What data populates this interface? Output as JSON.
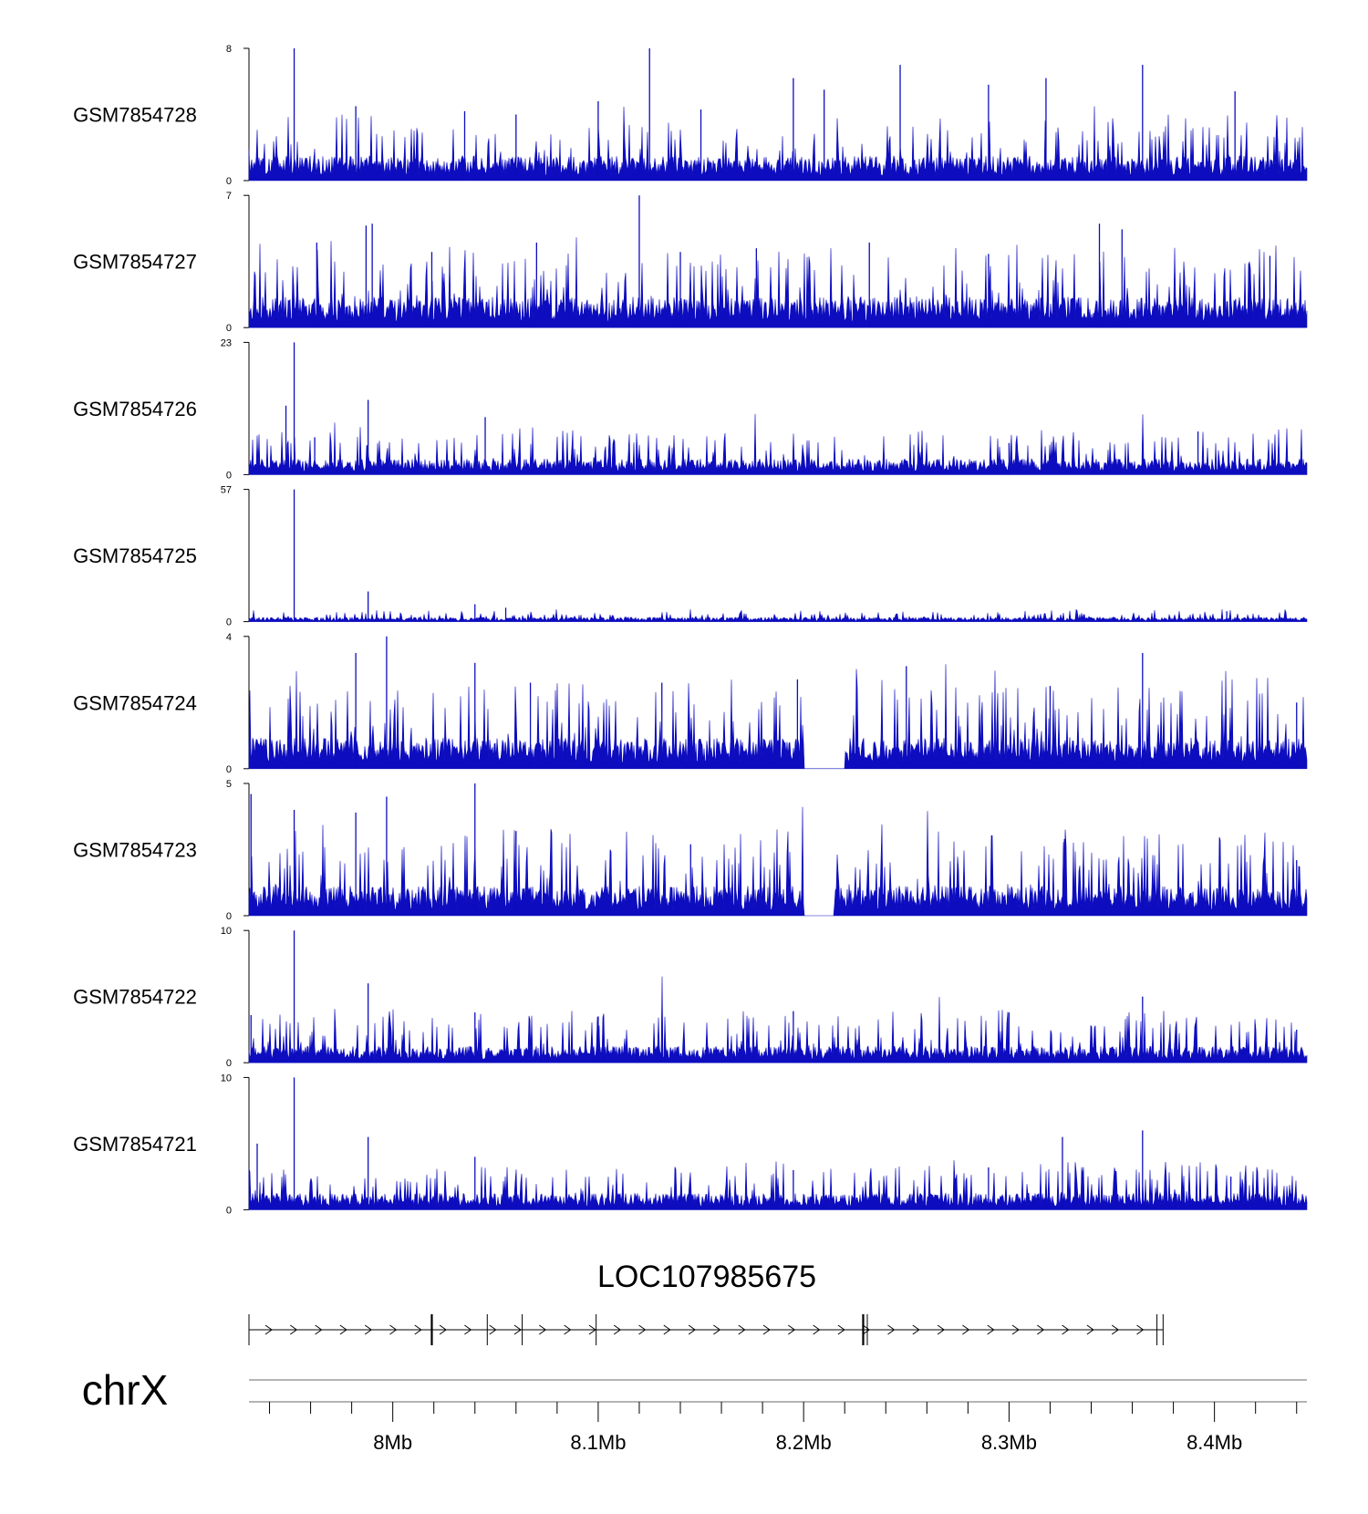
{
  "chart_data": {
    "type": "area",
    "title": "",
    "chromosome": "chrX",
    "x_range_bp": [
      7930000,
      8445000
    ],
    "x_axis": {
      "label": "chrX",
      "tick_labels": [
        {
          "pos": 8000000,
          "label": "8Mb"
        },
        {
          "pos": 8100000,
          "label": "8.1Mb"
        },
        {
          "pos": 8200000,
          "label": "8.2Mb"
        },
        {
          "pos": 8300000,
          "label": "8.3Mb"
        },
        {
          "pos": 8400000,
          "label": "8.4Mb"
        }
      ],
      "minor_tick_step_bp": 20000
    },
    "series": [
      {
        "name": "GSM7854728",
        "ylim": [
          0,
          8
        ],
        "baseline": 1.2,
        "noise": 0.9,
        "peaks": [
          [
            7952000,
            8.0
          ],
          [
            8125000,
            8.0
          ],
          [
            8247000,
            7.0
          ],
          [
            8365000,
            7.0
          ],
          [
            8318000,
            6.2
          ],
          [
            7982000,
            4.5
          ],
          [
            8100000,
            4.8
          ],
          [
            8060000,
            4.0
          ],
          [
            8195000,
            6.2
          ],
          [
            8210000,
            5.5
          ],
          [
            8290000,
            5.8
          ],
          [
            8410000,
            5.4
          ],
          [
            8150000,
            4.3
          ],
          [
            8035000,
            4.2
          ]
        ]
      },
      {
        "name": "GSM7854727",
        "ylim": [
          0,
          7
        ],
        "baseline": 1.3,
        "noise": 1.0,
        "peaks": [
          [
            8120000,
            7.0
          ],
          [
            7990000,
            5.5
          ],
          [
            7987000,
            5.4
          ],
          [
            7963000,
            4.5
          ],
          [
            8019000,
            4.0
          ],
          [
            8070000,
            4.5
          ],
          [
            8140000,
            4.0
          ],
          [
            8177000,
            4.2
          ],
          [
            8232000,
            4.5
          ],
          [
            8344000,
            5.5
          ],
          [
            8355000,
            5.2
          ],
          [
            8427000,
            3.8
          ],
          [
            8290000,
            3.9
          ]
        ]
      },
      {
        "name": "GSM7854726",
        "ylim": [
          0,
          23
        ],
        "baseline": 2.2,
        "noise": 2.0,
        "peaks": [
          [
            7952000,
            23.0
          ],
          [
            7948000,
            12.0
          ],
          [
            7988000,
            13.0
          ],
          [
            8045000,
            10.0
          ],
          [
            8392000,
            7.5
          ],
          [
            7962000,
            6.5
          ],
          [
            8115000,
            5.5
          ],
          [
            8300000,
            5.5
          ]
        ]
      },
      {
        "name": "GSM7854725",
        "ylim": [
          0,
          57
        ],
        "baseline": 1.5,
        "noise": 1.2,
        "peaks": [
          [
            7952000,
            57.0
          ],
          [
            7988000,
            13.0
          ],
          [
            8040000,
            7.5
          ],
          [
            8055000,
            6.0
          ],
          [
            8406000,
            4.5
          ]
        ]
      },
      {
        "name": "GSM7854724",
        "ylim": [
          0,
          4
        ],
        "baseline": 0.75,
        "noise": 0.7,
        "peaks": [
          [
            7997000,
            4.0
          ],
          [
            8040000,
            3.2
          ],
          [
            7982000,
            3.5
          ],
          [
            8365000,
            3.5
          ],
          [
            8250000,
            3.1
          ],
          [
            8067000,
            2.6
          ],
          [
            8131000,
            2.6
          ],
          [
            8197000,
            2.7
          ],
          [
            8320000,
            2.5
          ],
          [
            8440000,
            2.0
          ]
        ],
        "gaps": [
          [
            8200000,
            8220000
          ]
        ]
      },
      {
        "name": "GSM7854723",
        "ylim": [
          0,
          5
        ],
        "baseline": 0.9,
        "noise": 0.8,
        "peaks": [
          [
            8040000,
            5.0
          ],
          [
            7997000,
            4.5
          ],
          [
            7931000,
            4.6
          ],
          [
            7952000,
            4.0
          ],
          [
            7982000,
            3.9
          ],
          [
            8060000,
            3.2
          ],
          [
            8327000,
            2.9
          ],
          [
            8145000,
            2.7
          ],
          [
            8440000,
            2.1
          ]
        ],
        "gaps": [
          [
            8200000,
            8215000
          ]
        ]
      },
      {
        "name": "GSM7854722",
        "ylim": [
          0,
          10
        ],
        "baseline": 1.0,
        "noise": 1.0,
        "peaks": [
          [
            7952000,
            10.0
          ],
          [
            7988000,
            6.0
          ],
          [
            8365000,
            5.0
          ],
          [
            8040000,
            3.8
          ],
          [
            8100000,
            3.5
          ],
          [
            8195000,
            3.9
          ],
          [
            8300000,
            3.8
          ],
          [
            8440000,
            2.5
          ],
          [
            7931000,
            3.6
          ]
        ]
      },
      {
        "name": "GSM7854721",
        "ylim": [
          0,
          10
        ],
        "baseline": 1.0,
        "noise": 0.9,
        "peaks": [
          [
            7952000,
            10.0
          ],
          [
            8365000,
            6.0
          ],
          [
            8326000,
            5.5
          ],
          [
            7988000,
            5.5
          ],
          [
            7934000,
            5.0
          ],
          [
            8040000,
            4.0
          ],
          [
            8195000,
            3.0
          ],
          [
            8408000,
            2.5
          ],
          [
            8290000,
            3.2
          ]
        ]
      }
    ],
    "gene": {
      "name": "LOC107985675",
      "strand": "+",
      "start": 7930000,
      "end": 8375000,
      "exons": [
        7930000,
        8019000,
        8046000,
        8063000,
        8099000,
        8229000,
        8231000,
        8372000,
        8375000
      ]
    }
  },
  "colors": {
    "signal": "#0d0dbf",
    "axis": "#000000",
    "gene": "#000000",
    "chrom_line": "#888888"
  }
}
